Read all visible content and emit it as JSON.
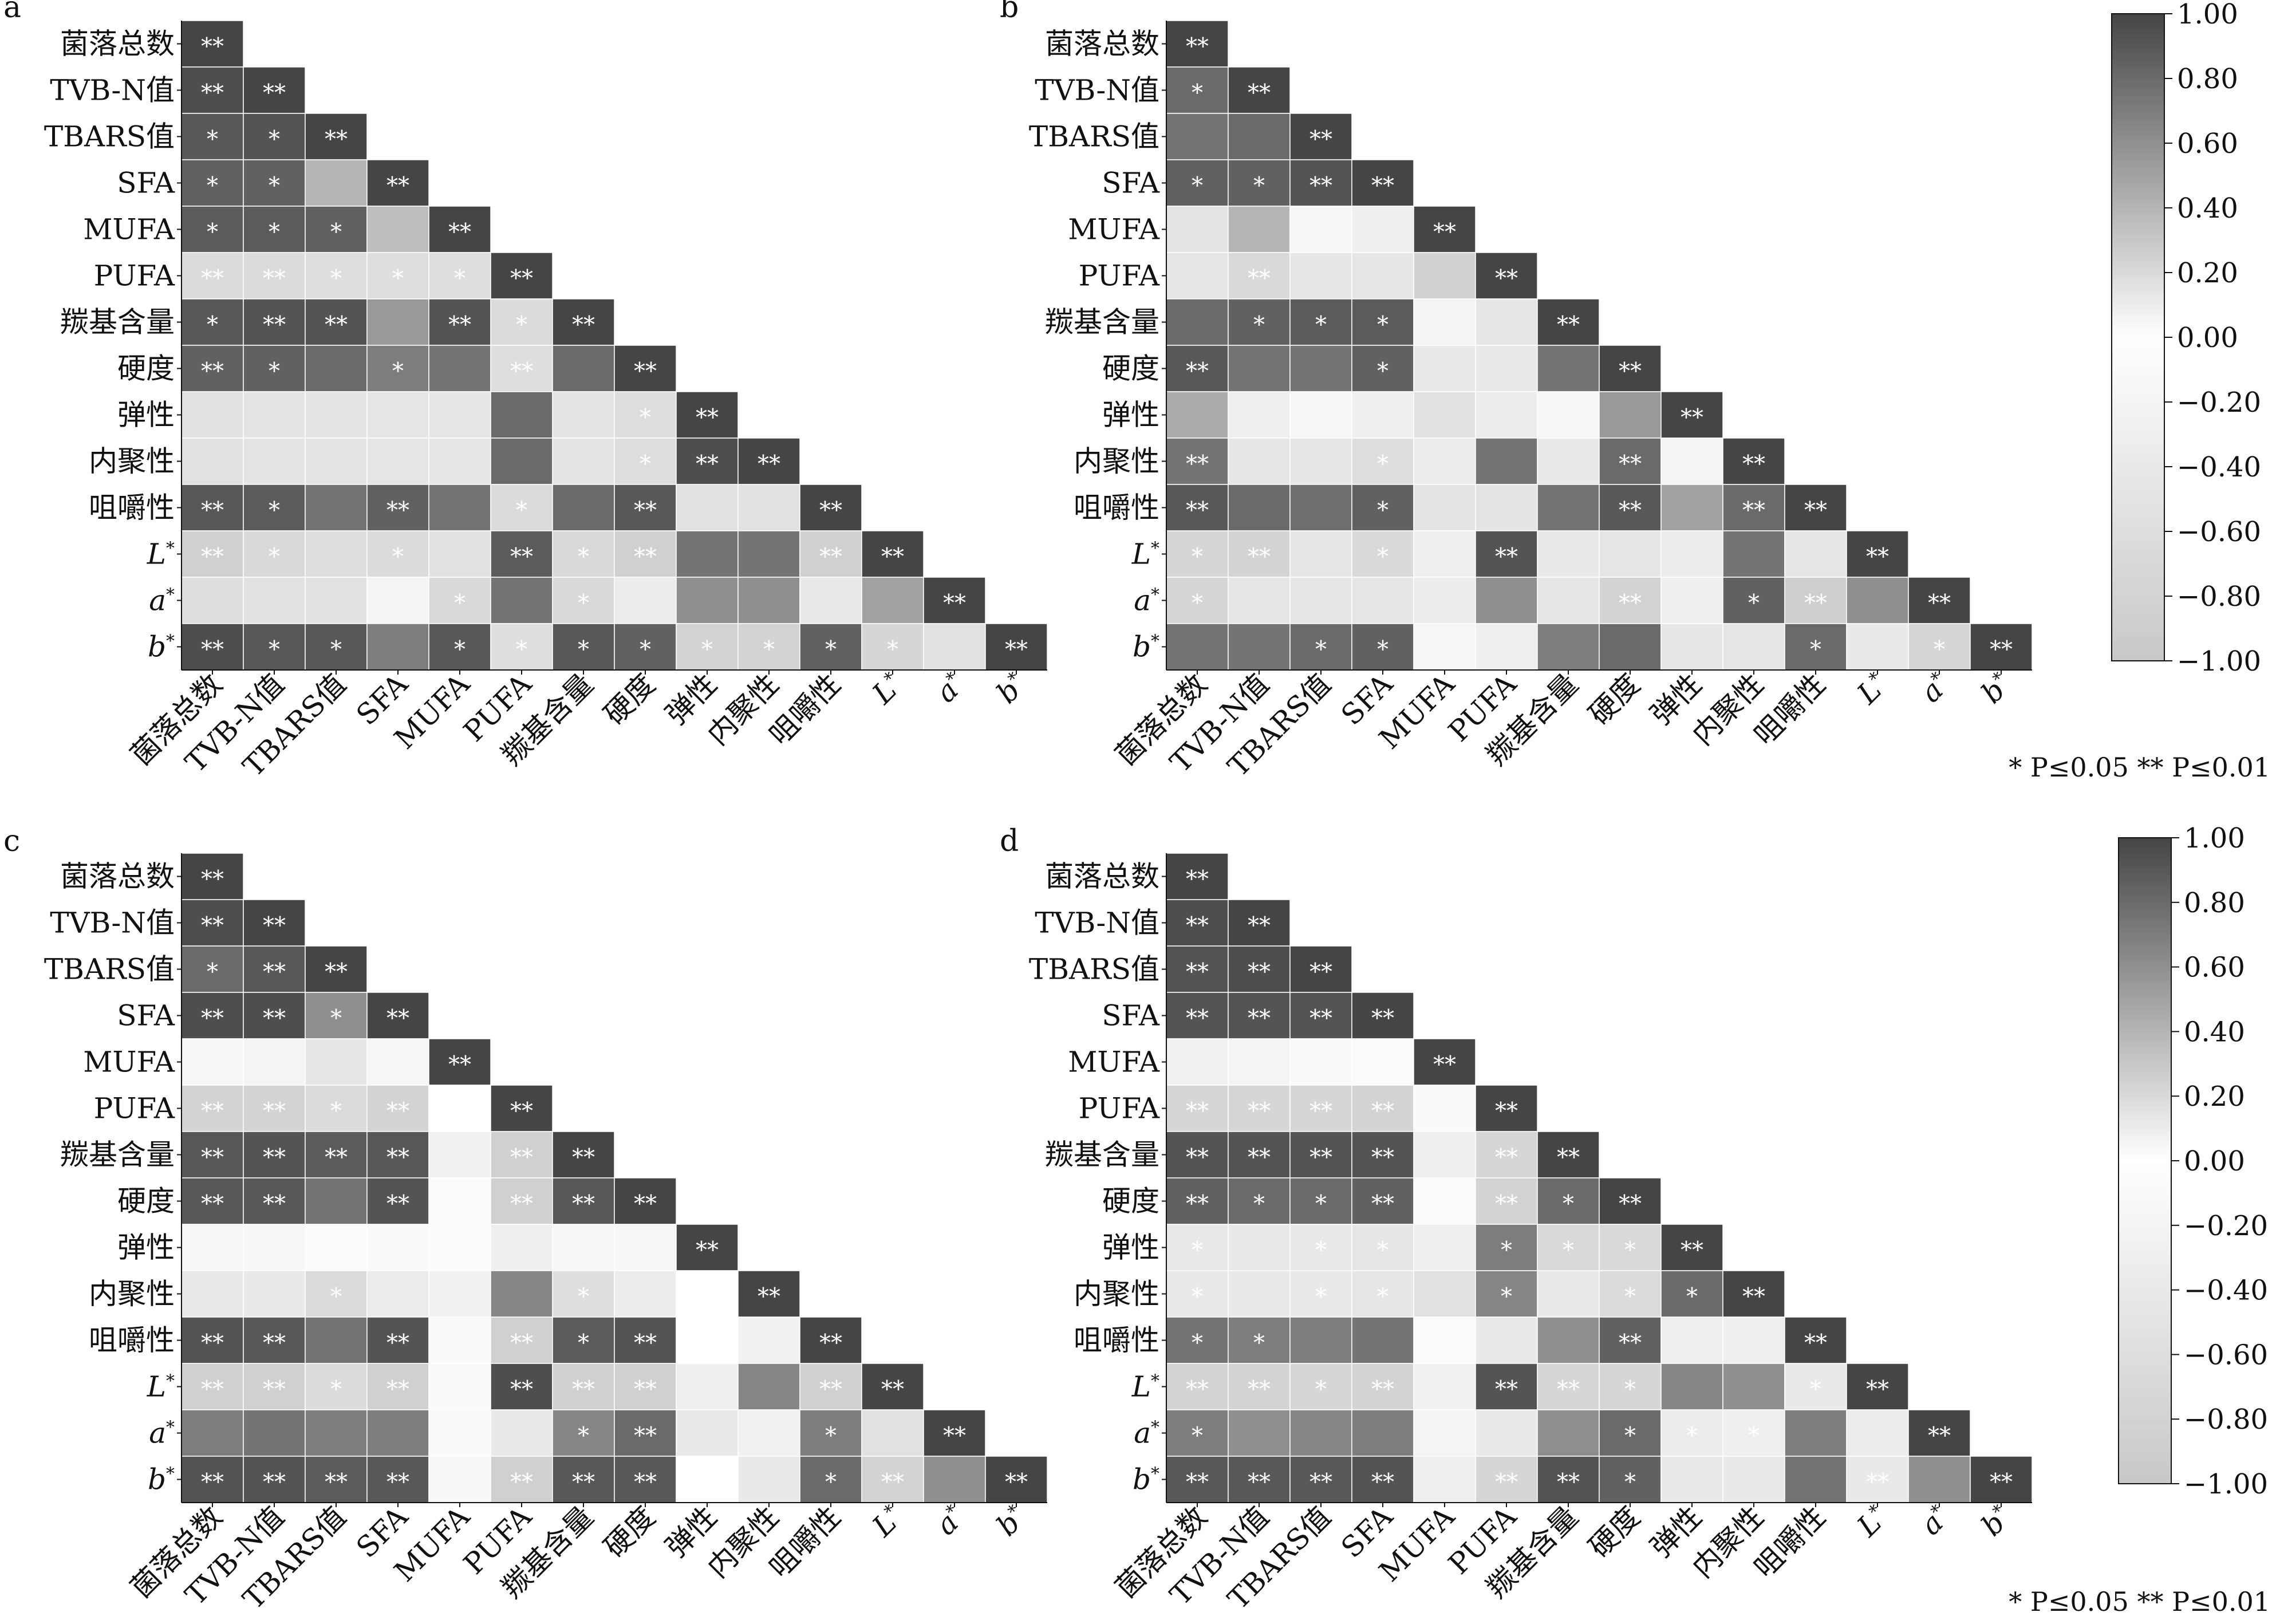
{
  "figure": {
    "significance_note": "* P≤0.05  ** P≤0.01"
  },
  "chart_data": [
    {
      "type": "heatmap",
      "panel": "a",
      "variables": [
        "菌落总数",
        "TVB-N值",
        "TBARS值",
        "SFA",
        "MUFA",
        "PUFA",
        "羰基含量",
        "硬度",
        "弹性",
        "内聚性",
        "咀嚼性",
        "L*",
        "a*",
        "b*"
      ],
      "values": [
        [
          1.0
        ],
        [
          0.95,
          1.0
        ],
        [
          0.9,
          0.92,
          1.0
        ],
        [
          0.85,
          0.85,
          0.4,
          1.0
        ],
        [
          0.88,
          0.88,
          0.85,
          0.35,
          1.0
        ],
        [
          -0.65,
          -0.65,
          -0.6,
          -0.6,
          -0.6,
          1.0
        ],
        [
          0.9,
          0.92,
          0.92,
          0.55,
          0.92,
          -0.65,
          1.0
        ],
        [
          0.85,
          0.85,
          0.8,
          0.7,
          0.75,
          -0.6,
          0.8,
          1.0
        ],
        [
          -0.55,
          -0.5,
          -0.5,
          -0.45,
          -0.45,
          0.8,
          -0.5,
          -0.62,
          1.0
        ],
        [
          -0.55,
          -0.5,
          -0.5,
          -0.45,
          -0.45,
          0.8,
          -0.5,
          -0.62,
          0.95,
          1.0
        ],
        [
          0.9,
          0.88,
          0.75,
          0.85,
          0.75,
          -0.65,
          0.8,
          0.9,
          -0.55,
          -0.55,
          1.0
        ],
        [
          -0.85,
          -0.7,
          -0.6,
          -0.65,
          -0.55,
          0.88,
          -0.7,
          -0.85,
          0.75,
          0.75,
          -0.85,
          1.0
        ],
        [
          -0.6,
          -0.55,
          -0.55,
          -0.2,
          -0.7,
          0.75,
          -0.7,
          -0.35,
          0.6,
          0.6,
          -0.4,
          0.5,
          1.0
        ],
        [
          0.95,
          0.9,
          0.9,
          0.7,
          0.9,
          -0.6,
          0.9,
          0.85,
          -0.8,
          -0.8,
          0.85,
          -0.75,
          -0.55,
          1.0
        ]
      ],
      "sig": [
        [
          "**"
        ],
        [
          "**",
          "**"
        ],
        [
          "*",
          "*",
          "**"
        ],
        [
          "*",
          "*",
          "",
          "**"
        ],
        [
          "*",
          "*",
          "*",
          "",
          "**"
        ],
        [
          "**",
          "**",
          "*",
          "*",
          "*",
          "**"
        ],
        [
          "*",
          "**",
          "**",
          "",
          "**",
          "*",
          "**"
        ],
        [
          "**",
          "*",
          "",
          "*",
          "",
          "**",
          "",
          "**"
        ],
        [
          "",
          "",
          "",
          "",
          "",
          "",
          "",
          "*",
          "**"
        ],
        [
          "",
          "",
          "",
          "",
          "",
          "",
          "",
          "*",
          "**",
          "**"
        ],
        [
          "**",
          "*",
          "",
          "**",
          "",
          "*",
          "",
          "**",
          "",
          "",
          "**"
        ],
        [
          "**",
          "*",
          "",
          "*",
          "",
          "**",
          "*",
          "**",
          "",
          "",
          "**",
          "**"
        ],
        [
          "",
          "",
          "",
          "",
          "*",
          "",
          "*",
          "",
          "",
          "",
          "",
          "",
          "**"
        ],
        [
          "**",
          "*",
          "*",
          "",
          "*",
          "*",
          "*",
          "*",
          "*",
          "*",
          "*",
          "*",
          "",
          "**"
        ]
      ]
    },
    {
      "type": "heatmap",
      "panel": "b",
      "variables": [
        "菌落总数",
        "TVB-N值",
        "TBARS值",
        "SFA",
        "MUFA",
        "PUFA",
        "羰基含量",
        "硬度",
        "弹性",
        "内聚性",
        "咀嚼性",
        "L*",
        "a*",
        "b*"
      ],
      "values": [
        [
          1.0
        ],
        [
          0.8,
          1.0
        ],
        [
          0.75,
          0.8,
          1.0
        ],
        [
          0.85,
          0.85,
          0.92,
          1.0
        ],
        [
          -0.5,
          0.4,
          -0.15,
          -0.3,
          1.0
        ],
        [
          -0.45,
          -0.7,
          -0.45,
          -0.45,
          0.25,
          1.0
        ],
        [
          0.8,
          0.85,
          0.88,
          0.88,
          -0.2,
          -0.45,
          1.0
        ],
        [
          0.9,
          0.75,
          0.75,
          0.85,
          -0.4,
          -0.4,
          0.75,
          1.0
        ],
        [
          0.45,
          -0.3,
          0.05,
          -0.3,
          -0.55,
          0.1,
          0.05,
          0.55,
          1.0
        ],
        [
          0.75,
          -0.45,
          -0.45,
          -0.6,
          0.1,
          0.75,
          -0.4,
          0.8,
          -0.2,
          1.0
        ],
        [
          0.9,
          0.8,
          0.78,
          0.85,
          -0.5,
          -0.5,
          0.75,
          0.9,
          0.5,
          0.8,
          1.0
        ],
        [
          -0.75,
          -0.8,
          -0.45,
          -0.7,
          -0.3,
          0.92,
          -0.4,
          -0.45,
          0.1,
          0.75,
          -0.45,
          1.0
        ],
        [
          -0.75,
          -0.45,
          -0.45,
          -0.45,
          0.1,
          0.6,
          -0.45,
          -0.8,
          -0.3,
          0.85,
          -0.9,
          0.6,
          1.0
        ],
        [
          0.75,
          0.75,
          0.8,
          0.85,
          0.05,
          -0.3,
          0.7,
          0.8,
          -0.45,
          -0.45,
          0.8,
          -0.4,
          -0.75,
          1.0
        ]
      ],
      "sig": [
        [
          "**"
        ],
        [
          "*",
          "**"
        ],
        [
          "",
          "",
          "**"
        ],
        [
          "*",
          "*",
          "**",
          "**"
        ],
        [
          "",
          "",
          "",
          "",
          "**"
        ],
        [
          "",
          "**",
          "",
          "",
          "",
          "**"
        ],
        [
          "",
          "*",
          "*",
          "*",
          "",
          "",
          "**"
        ],
        [
          "**",
          "",
          "",
          "*",
          "",
          "",
          "",
          "**"
        ],
        [
          "",
          "",
          "",
          "",
          "",
          "",
          "",
          "",
          "**"
        ],
        [
          "**",
          "",
          "",
          "*",
          "",
          "",
          "",
          "**",
          "",
          "**"
        ],
        [
          "**",
          "",
          "",
          "*",
          "",
          "",
          "",
          "**",
          "",
          "**",
          "**"
        ],
        [
          "*",
          "**",
          "",
          "*",
          "",
          "**",
          "",
          "",
          "",
          "",
          "",
          "**"
        ],
        [
          "*",
          "",
          "",
          "",
          "",
          "",
          "",
          "**",
          "",
          "*",
          "**",
          "",
          "**"
        ],
        [
          "",
          "",
          "*",
          "*",
          "",
          "",
          "",
          "",
          "",
          "",
          "*",
          "",
          "*",
          "**"
        ]
      ]
    },
    {
      "type": "heatmap",
      "panel": "c",
      "variables": [
        "菌落总数",
        "TVB-N值",
        "TBARS值",
        "SFA",
        "MUFA",
        "PUFA",
        "羰基含量",
        "硬度",
        "弹性",
        "内聚性",
        "咀嚼性",
        "L*",
        "a*",
        "b*"
      ],
      "values": [
        [
          1.0
        ],
        [
          0.95,
          1.0
        ],
        [
          0.8,
          0.9,
          1.0
        ],
        [
          0.95,
          0.95,
          0.6,
          1.0
        ],
        [
          0.05,
          -0.2,
          -0.45,
          0.05,
          1.0
        ],
        [
          -0.8,
          -0.8,
          -0.65,
          -0.8,
          0.0,
          1.0
        ],
        [
          0.9,
          0.92,
          0.88,
          0.9,
          -0.25,
          -0.85,
          1.0
        ],
        [
          0.9,
          0.9,
          0.75,
          0.92,
          0.02,
          -0.85,
          0.9,
          1.0
        ],
        [
          0.05,
          -0.15,
          0.02,
          -0.1,
          -0.05,
          -0.3,
          -0.15,
          -0.15,
          1.0
        ],
        [
          -0.4,
          -0.4,
          -0.65,
          -0.35,
          -0.25,
          0.65,
          -0.6,
          -0.35,
          0.0,
          1.0
        ],
        [
          0.92,
          0.9,
          0.75,
          0.92,
          -0.1,
          -0.85,
          0.88,
          0.92,
          0.0,
          -0.25,
          1.0
        ],
        [
          -0.85,
          -0.85,
          -0.65,
          -0.85,
          -0.1,
          0.95,
          -0.85,
          -0.85,
          -0.3,
          0.65,
          -0.85,
          1.0
        ],
        [
          0.7,
          0.75,
          0.7,
          0.7,
          -0.1,
          -0.4,
          0.65,
          0.8,
          -0.4,
          -0.25,
          0.7,
          -0.55,
          1.0
        ],
        [
          0.92,
          0.92,
          0.88,
          0.9,
          -0.15,
          -0.85,
          0.9,
          0.9,
          0.0,
          -0.4,
          0.8,
          -0.8,
          0.6,
          1.0
        ]
      ],
      "sig": [
        [
          "**"
        ],
        [
          "**",
          "**"
        ],
        [
          "*",
          "**",
          "**"
        ],
        [
          "**",
          "**",
          "*",
          "**"
        ],
        [
          "",
          "",
          "",
          "",
          "**"
        ],
        [
          "**",
          "**",
          "*",
          "**",
          "",
          "**"
        ],
        [
          "**",
          "**",
          "**",
          "**",
          "",
          "**",
          "**"
        ],
        [
          "**",
          "**",
          "",
          "**",
          "",
          "**",
          "**",
          "**"
        ],
        [
          "",
          "",
          "",
          "",
          "",
          "",
          "",
          "",
          "**"
        ],
        [
          "",
          "",
          "*",
          "",
          "",
          "",
          "*",
          "",
          "",
          "**"
        ],
        [
          "**",
          "**",
          "",
          "**",
          "",
          "**",
          "*",
          "**",
          "",
          "",
          "**"
        ],
        [
          "**",
          "**",
          "*",
          "**",
          "",
          "**",
          "**",
          "**",
          "",
          "",
          "**",
          "**"
        ],
        [
          "",
          "",
          "",
          "",
          "",
          "",
          "*",
          "**",
          "",
          "",
          "*",
          "",
          "**"
        ],
        [
          "**",
          "**",
          "**",
          "**",
          "",
          "**",
          "**",
          "**",
          "",
          "",
          "*",
          "**",
          "",
          "**"
        ]
      ]
    },
    {
      "type": "heatmap",
      "panel": "d",
      "variables": [
        "菌落总数",
        "TVB-N值",
        "TBARS值",
        "SFA",
        "MUFA",
        "PUFA",
        "羰基含量",
        "硬度",
        "弹性",
        "内聚性",
        "咀嚼性",
        "L*",
        "a*",
        "b*"
      ],
      "values": [
        [
          1.0
        ],
        [
          0.95,
          1.0
        ],
        [
          0.92,
          0.95,
          1.0
        ],
        [
          0.92,
          0.92,
          0.92,
          1.0
        ],
        [
          -0.25,
          -0.2,
          -0.1,
          0.02,
          1.0
        ],
        [
          -0.75,
          -0.75,
          -0.75,
          -0.8,
          -0.1,
          1.0
        ],
        [
          0.92,
          0.92,
          0.92,
          0.92,
          -0.3,
          -0.75,
          1.0
        ],
        [
          0.85,
          0.8,
          0.8,
          0.85,
          0.02,
          -0.8,
          0.8,
          1.0
        ],
        [
          -0.4,
          -0.4,
          -0.4,
          -0.45,
          -0.3,
          0.7,
          -0.7,
          -0.7,
          1.0
        ],
        [
          -0.4,
          -0.4,
          -0.4,
          -0.45,
          -0.55,
          0.65,
          -0.4,
          -0.65,
          0.8,
          1.0
        ],
        [
          0.75,
          0.7,
          0.7,
          0.75,
          0.02,
          -0.4,
          0.6,
          0.85,
          -0.3,
          -0.3,
          1.0
        ],
        [
          -0.8,
          -0.8,
          -0.75,
          -0.8,
          -0.25,
          0.92,
          -0.75,
          -0.75,
          0.65,
          0.6,
          -0.4,
          1.0
        ],
        [
          0.7,
          0.6,
          0.65,
          0.7,
          -0.2,
          -0.4,
          0.6,
          0.8,
          -0.35,
          -0.3,
          0.7,
          -0.35,
          1.0
        ],
        [
          0.9,
          0.9,
          0.9,
          0.92,
          -0.3,
          -0.75,
          0.92,
          0.85,
          -0.4,
          -0.4,
          0.75,
          -0.4,
          0.6,
          1.0
        ]
      ],
      "sig": [
        [
          "**"
        ],
        [
          "**",
          "**"
        ],
        [
          "**",
          "**",
          "**"
        ],
        [
          "**",
          "**",
          "**",
          "**"
        ],
        [
          "",
          "",
          "",
          "",
          "**"
        ],
        [
          "**",
          "**",
          "**",
          "**",
          "",
          "**"
        ],
        [
          "**",
          "**",
          "**",
          "**",
          "",
          "**",
          "**"
        ],
        [
          "**",
          "*",
          "*",
          "**",
          "",
          "**",
          "*",
          "**"
        ],
        [
          "*",
          "",
          "*",
          "*",
          "",
          "*",
          "*",
          "*",
          "**"
        ],
        [
          "*",
          "",
          "*",
          "*",
          "",
          "*",
          "",
          "*",
          "*",
          "**"
        ],
        [
          "*",
          "*",
          "",
          "",
          "",
          "",
          "",
          "**",
          "",
          "",
          "**"
        ],
        [
          "**",
          "**",
          "*",
          "**",
          "",
          "**",
          "**",
          "*",
          "",
          "",
          "*",
          "**"
        ],
        [
          "*",
          "",
          "",
          "",
          "",
          "",
          "",
          "*",
          "*",
          "*",
          "",
          "",
          "**"
        ],
        [
          "**",
          "**",
          "**",
          "**",
          "",
          "**",
          "**",
          "*",
          "",
          "",
          "",
          "**",
          "",
          "**"
        ]
      ]
    }
  ],
  "colorbars": [
    {
      "ticks": [
        "1.00",
        "0.80",
        "0.60",
        "0.40",
        "0.20",
        "0.00",
        "−0.20",
        "−0.40",
        "−0.60",
        "−0.80",
        "−1.00"
      ]
    },
    {
      "ticks": [
        "1.00",
        "0.80",
        "0.60",
        "0.40",
        "0.20",
        "0.00",
        "−0.20",
        "−0.40",
        "−0.60",
        "−0.80",
        "−1.00"
      ]
    }
  ]
}
